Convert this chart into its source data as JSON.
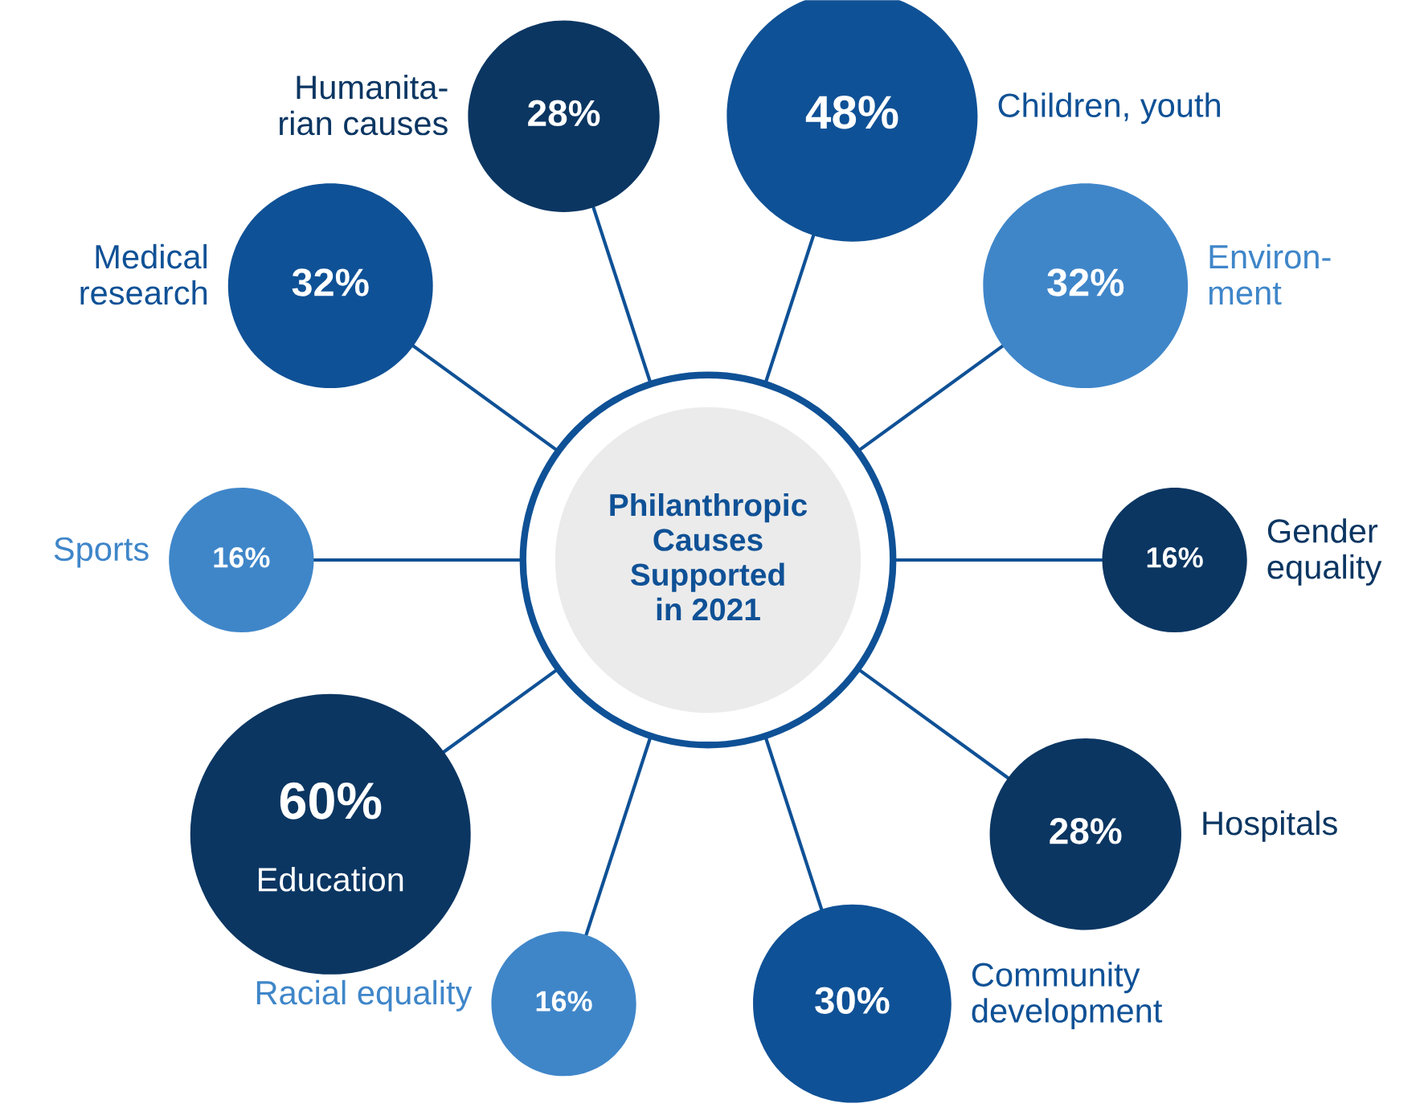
{
  "chart_data": {
    "type": "other",
    "title": "Philanthropic\nCauses\nSupported\nin 2021",
    "categories": [
      "Humanita-\nrian causes",
      "Children, youth",
      "Environ-\nment",
      "Gender\nequality",
      "Hospitals",
      "Community\ndevelopment",
      "Racial equality",
      "Education",
      "Sports",
      "Medical\nresearch"
    ],
    "values": [
      28,
      48,
      32,
      16,
      28,
      30,
      16,
      60,
      16,
      32
    ],
    "value_labels": [
      "28%",
      "48%",
      "32%",
      "16%",
      "28%",
      "30%",
      "16%",
      "60%",
      "16%",
      "32%"
    ],
    "colors": [
      "#0b3662",
      "#0f5196",
      "#3f86c9",
      "#0b3662",
      "#0b3662",
      "#0f5196",
      "#3f86c9",
      "#0b3662",
      "#3f86c9",
      "#0f5196"
    ]
  }
}
